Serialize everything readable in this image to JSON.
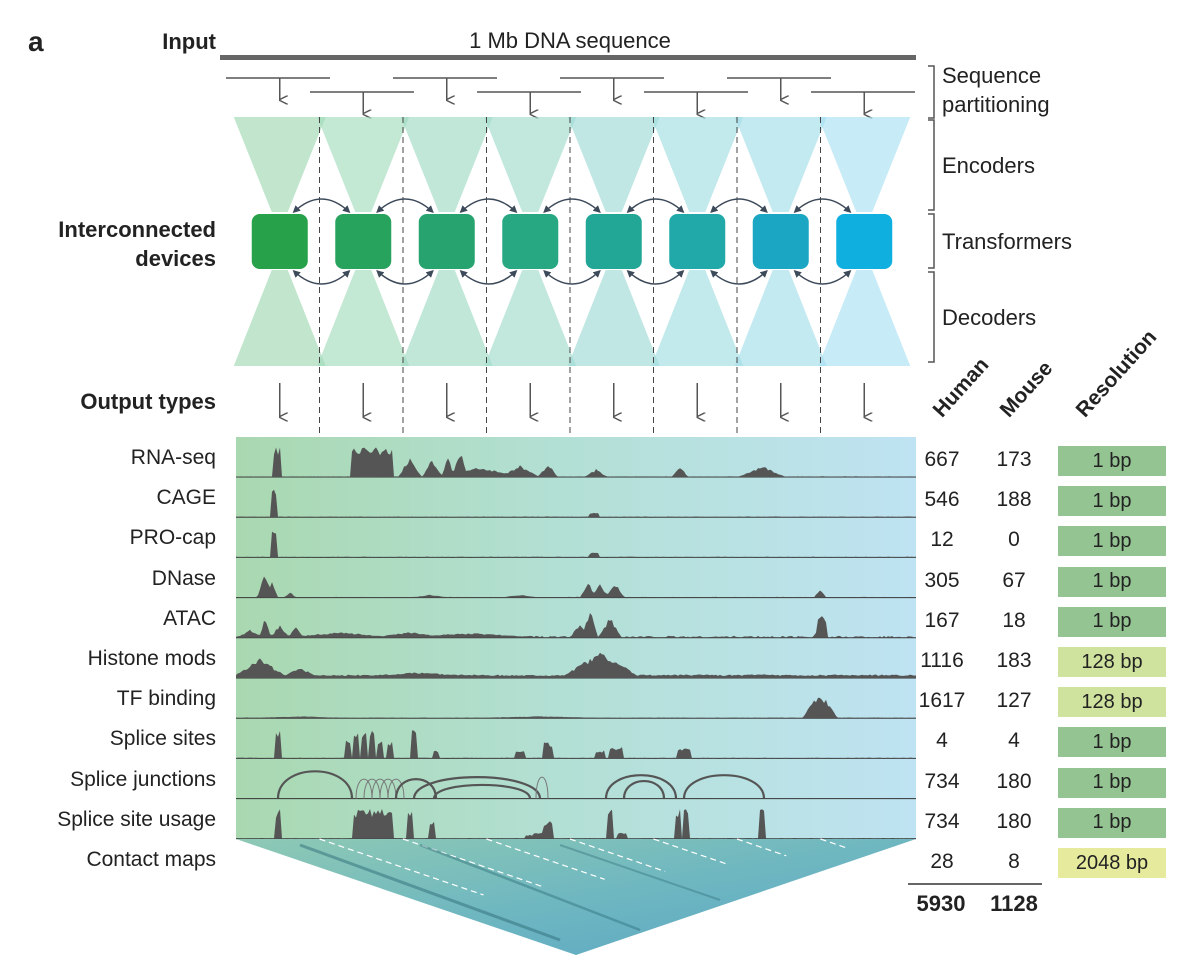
{
  "panel_label": "a",
  "input_label": "Input",
  "sequence_label": "1 Mb DNA sequence",
  "devices_label_line1": "Interconnected",
  "devices_label_line2": "devices",
  "output_types_label": "Output types",
  "stage_labels": {
    "partitioning_line1": "Sequence",
    "partitioning_line2": "partitioning",
    "encoders": "Encoders",
    "transformers": "Transformers",
    "decoders": "Decoders"
  },
  "column_headers": {
    "human": "Human",
    "mouse": "Mouse",
    "resolution": "Resolution"
  },
  "device_colors": [
    "#27a14a",
    "#28a35e",
    "#27a36f",
    "#27a883",
    "#22a696",
    "#20a9a8",
    "#1ba7c4",
    "#0fafe0"
  ],
  "tracks": [
    {
      "label": "RNA-seq",
      "human": "667",
      "mouse": "173",
      "resolution": "1 bp",
      "res_color": "#93c492"
    },
    {
      "label": "CAGE",
      "human": "546",
      "mouse": "188",
      "resolution": "1 bp",
      "res_color": "#93c492"
    },
    {
      "label": "PRO-cap",
      "human": "12",
      "mouse": "0",
      "resolution": "1 bp",
      "res_color": "#93c492"
    },
    {
      "label": "DNase",
      "human": "305",
      "mouse": "67",
      "resolution": "1 bp",
      "res_color": "#93c492"
    },
    {
      "label": "ATAC",
      "human": "167",
      "mouse": "18",
      "resolution": "1 bp",
      "res_color": "#93c492"
    },
    {
      "label": "Histone mods",
      "human": "1116",
      "mouse": "183",
      "resolution": "128 bp",
      "res_color": "#cfe39e"
    },
    {
      "label": "TF binding",
      "human": "1617",
      "mouse": "127",
      "resolution": "128 bp",
      "res_color": "#cfe39e"
    },
    {
      "label": "Splice sites",
      "human": "4",
      "mouse": "4",
      "resolution": "1 bp",
      "res_color": "#93c492"
    },
    {
      "label": "Splice junctions",
      "human": "734",
      "mouse": "180",
      "resolution": "1 bp",
      "res_color": "#93c492"
    },
    {
      "label": "Splice site usage",
      "human": "734",
      "mouse": "180",
      "resolution": "1 bp",
      "res_color": "#93c492"
    },
    {
      "label": "Contact maps",
      "human": "28",
      "mouse": "8",
      "resolution": "2048 bp",
      "res_color": "#e6ea9d"
    }
  ],
  "totals": {
    "human": "5930",
    "mouse": "1128"
  }
}
